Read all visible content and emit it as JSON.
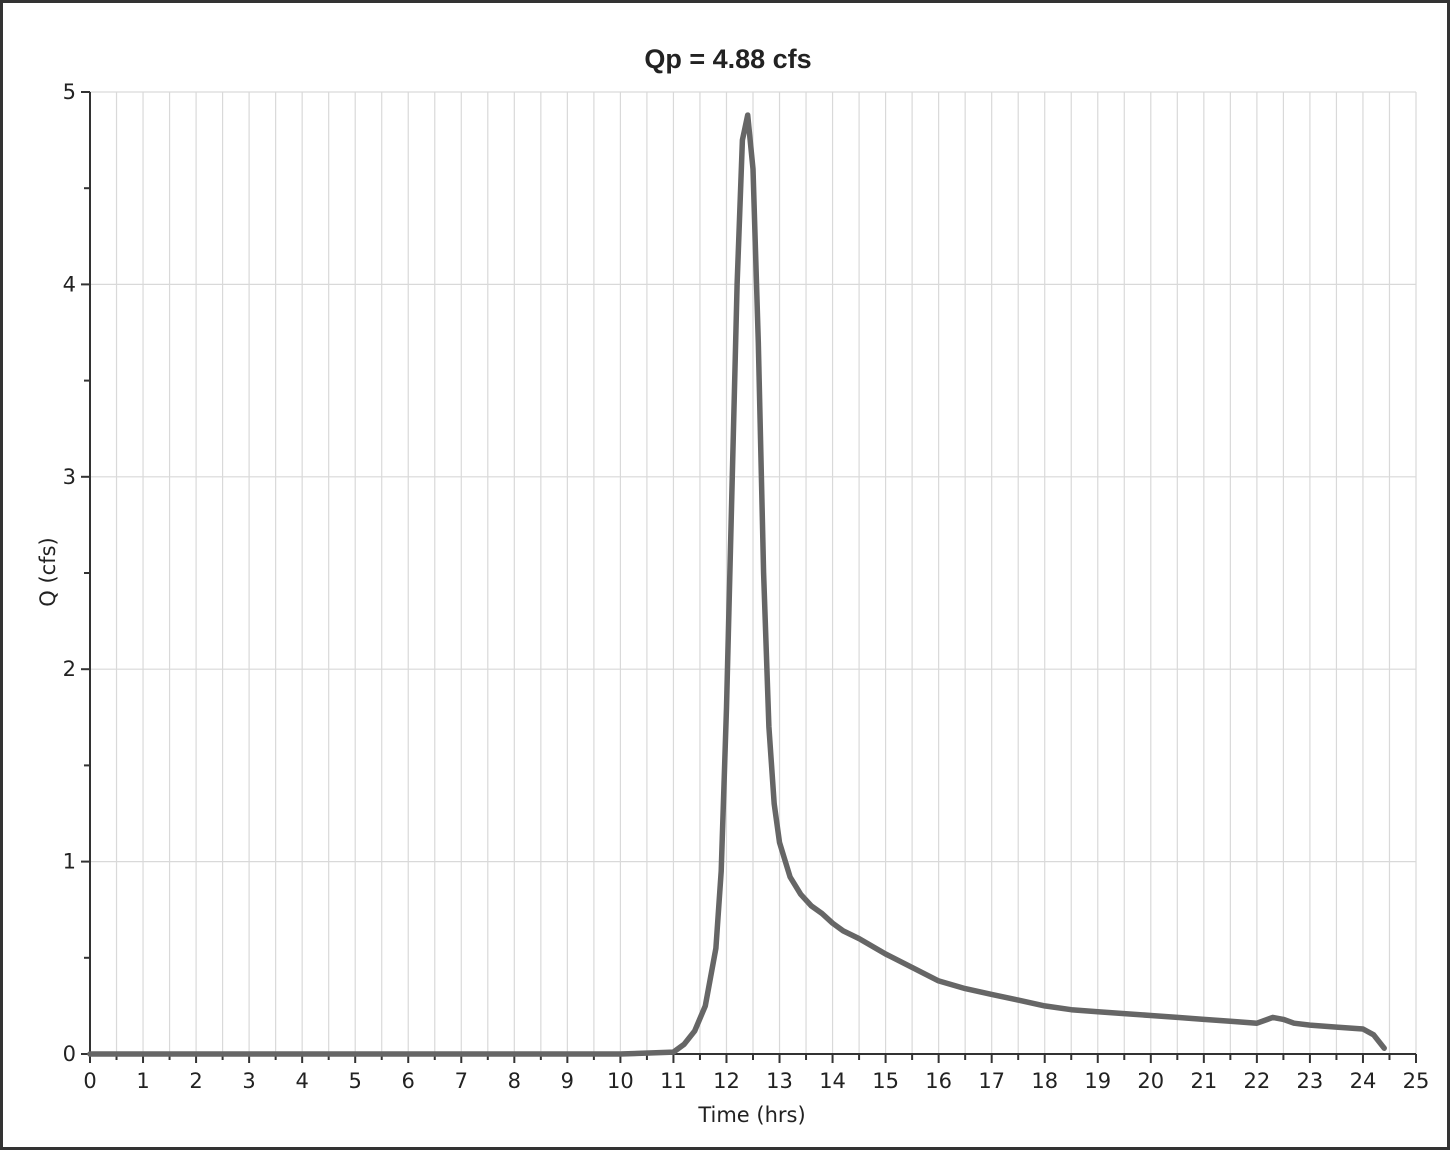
{
  "chart_data": {
    "type": "line",
    "title": "Qp = 4.88 cfs",
    "xlabel": "Time (hrs)",
    "ylabel": "Q (cfs)",
    "xlim": [
      0,
      25
    ],
    "ylim": [
      0,
      5
    ],
    "x_ticks": [
      "0",
      "1",
      "2",
      "3",
      "4",
      "5",
      "6",
      "7",
      "8",
      "9",
      "10",
      "11",
      "12",
      "13",
      "14",
      "15",
      "16",
      "17",
      "18",
      "19",
      "20",
      "21",
      "22",
      "23",
      "24",
      "25"
    ],
    "y_ticks": [
      "0",
      "1",
      "2",
      "3",
      "4",
      "5"
    ],
    "grid": true,
    "legend": "none",
    "line_color": "#666666",
    "series": [
      {
        "x": [
          0,
          10.0,
          11.0,
          11.2,
          11.4,
          11.6,
          11.8,
          11.9,
          12.0,
          12.1,
          12.2,
          12.3,
          12.4,
          12.5,
          12.6,
          12.7,
          12.8,
          12.9,
          13.0,
          13.2,
          13.4,
          13.6,
          13.8,
          14.0,
          14.2,
          14.5,
          15.0,
          15.5,
          16.0,
          16.5,
          17.0,
          17.5,
          18.0,
          18.5,
          19.0,
          19.5,
          20.0,
          20.5,
          21.0,
          21.5,
          22.0,
          22.2,
          22.3,
          22.5,
          22.7,
          23.0,
          23.5,
          24.0,
          24.2,
          24.4
        ],
        "values": [
          0,
          0,
          0.01,
          0.05,
          0.12,
          0.25,
          0.55,
          0.95,
          1.8,
          2.9,
          4.0,
          4.75,
          4.88,
          4.6,
          3.7,
          2.5,
          1.7,
          1.3,
          1.1,
          0.92,
          0.83,
          0.77,
          0.73,
          0.68,
          0.64,
          0.6,
          0.52,
          0.45,
          0.38,
          0.34,
          0.31,
          0.28,
          0.25,
          0.23,
          0.22,
          0.21,
          0.2,
          0.19,
          0.18,
          0.17,
          0.16,
          0.18,
          0.19,
          0.18,
          0.16,
          0.15,
          0.14,
          0.13,
          0.1,
          0.03
        ]
      }
    ]
  }
}
